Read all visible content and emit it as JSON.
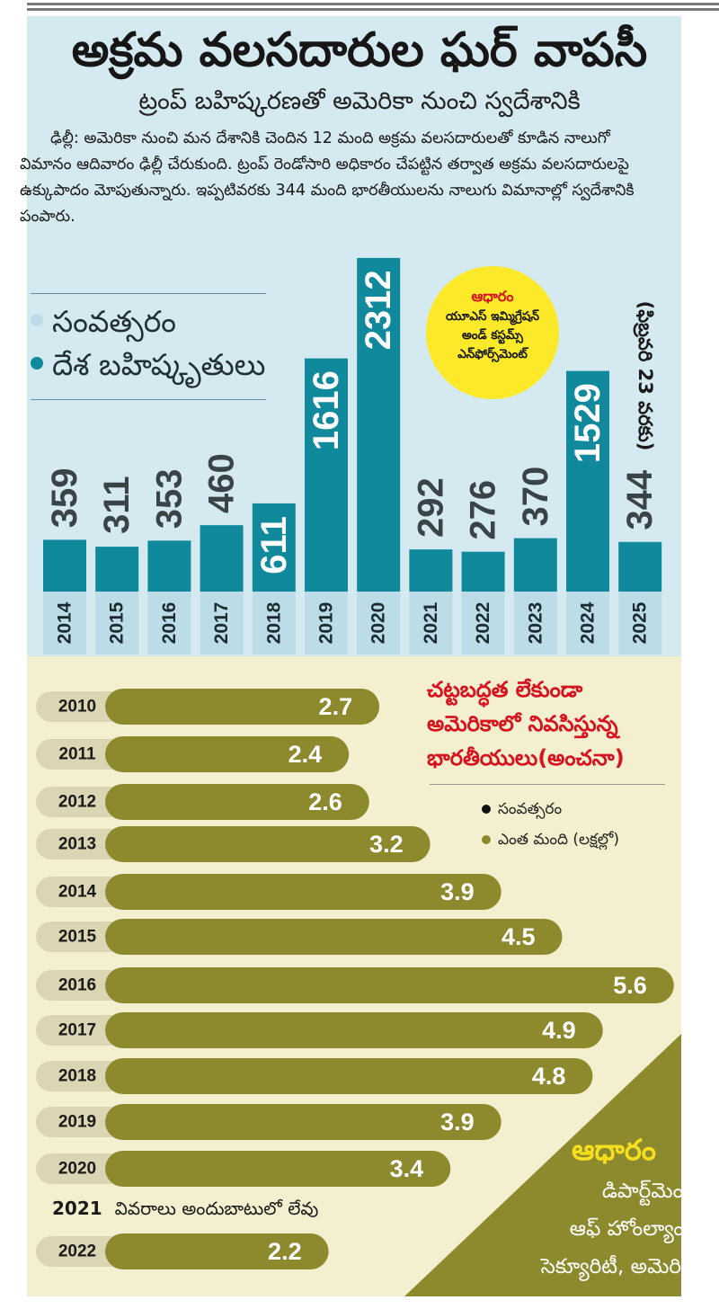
{
  "headline": "అక్రమ వలసదారుల ఘర్ వాపసీ",
  "subheadline": "ట్రంప్ బహిష్కరణతో అమెరికా నుంచి స్వదేశానికి",
  "body_text": "ఢిల్లీ: అమెరికా నుంచి మన దేశానికి చెందిన 12 మంది అక్రమ వలసదారులతో కూడిన నాలుగో విమానం ఆదివారం ఢిల్లీ చేరుకుంది. ట్రంప్ రెండోసారి అధికారం చేపట్టిన తర్వాత అక్రమ వలసదారులపై ఉక్కుపాదం మోపుతున్నారు. ఇప్పటివరకు 344 మంది భారతీయులను నాలుగు విమానాల్లో స్వదేశానికి పంపారు.",
  "legend_top": {
    "year_label": "సంవత్సరం",
    "deport_label": "దేశ బహిష్కృతులు"
  },
  "source_top": {
    "label": "ఆధారం",
    "lines": [
      "యూఎస్ ఇమ్మిగ్రేషన్",
      "అండ్ కస్టమ్స్",
      "ఎన్‌ఫోర్స్‌మెంట్"
    ]
  },
  "date_note": "(ఫిబ్రవరి 23 వరకు)",
  "colors": {
    "teal": "#11899c",
    "light_blue": "#bcdce7",
    "olive": "#8c8a2d",
    "olive_dark": "#6f6d1d",
    "red": "#d6131e",
    "yellow": "#fbe92a",
    "year_pill": "#dbd5b3"
  },
  "callout_lines": [
    "చట్టబద్ధత లేకుండా",
    "అమెరికాలో నివసిస్తున్న",
    "భారతీయులు(అంచనా)"
  ],
  "legend_bottom": {
    "year_label": "సంవత్సరం",
    "count_label": "ఎంత మంది (లక్షల్లో)"
  },
  "source_bottom": {
    "label": "ఆధారం",
    "lines": [
      "డిపార్ట్‌మెంట్",
      "ఆఫ్ హోంల్యాండ్",
      "సెక్యూరిటీ, అమెరికా"
    ]
  },
  "na_row": {
    "year": "2021",
    "text": "వివరాలు అందుబాటులో లేవు"
  },
  "chart_data": [
    {
      "type": "bar",
      "categories": [
        "2014",
        "2015",
        "2016",
        "2017",
        "2018",
        "2019",
        "2020",
        "2021",
        "2022",
        "2023",
        "2024",
        "2025"
      ],
      "values": [
        359,
        311,
        353,
        460,
        611,
        1616,
        2312,
        292,
        276,
        370,
        1529,
        344
      ],
      "value_labels": [
        "359",
        "311",
        "353",
        "460",
        "611",
        "1616",
        "2312",
        "292",
        "276",
        "370",
        "1529",
        "344"
      ]
    },
    {
      "type": "bar",
      "orientation": "horizontal",
      "categories": [
        "2010",
        "2011",
        "2012",
        "2013",
        "2014",
        "2015",
        "2016",
        "2017",
        "2018",
        "2019",
        "2020",
        "2022"
      ],
      "values": [
        2.7,
        2.4,
        2.6,
        3.2,
        3.9,
        4.5,
        5.6,
        4.9,
        4.8,
        3.9,
        3.4,
        2.2
      ],
      "value_labels": [
        "2.7",
        "2.4",
        "2.6",
        "3.2",
        "3.9",
        "4.5",
        "5.6",
        "4.9",
        "4.8",
        "3.9",
        "3.4",
        "2.2"
      ]
    }
  ]
}
